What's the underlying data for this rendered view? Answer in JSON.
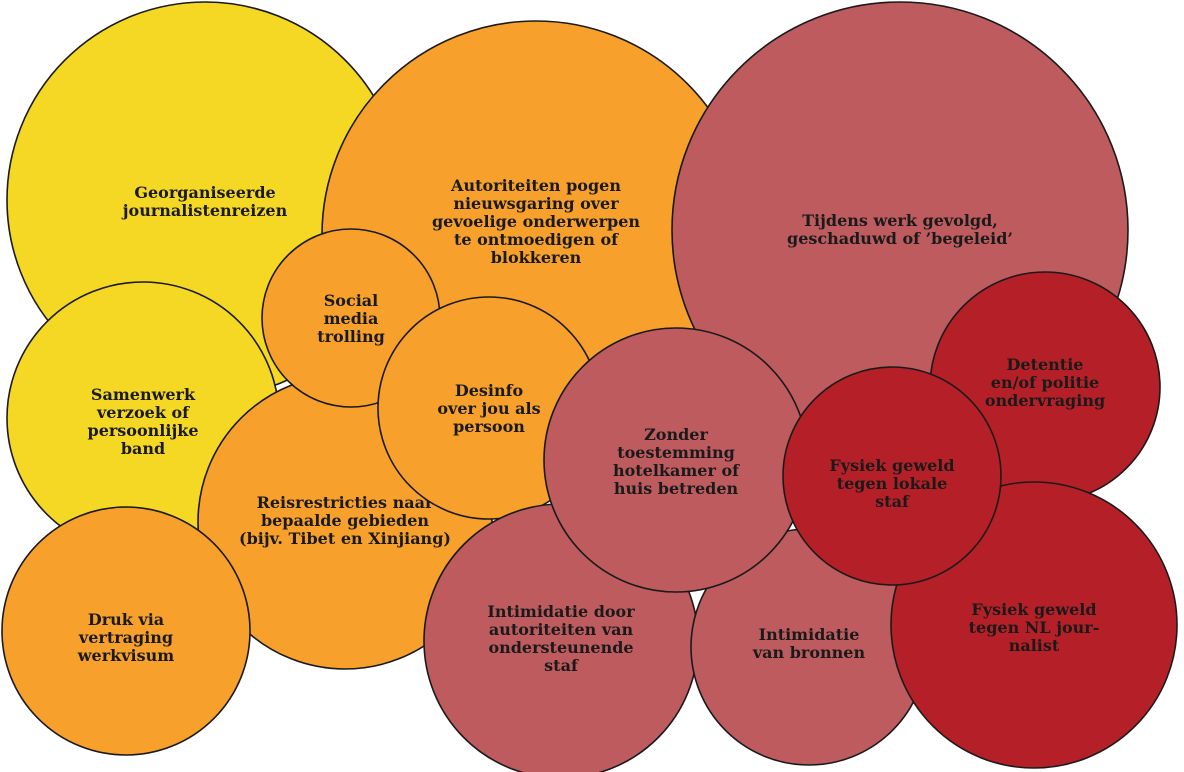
{
  "colors": {
    "yellow": "#f5d823",
    "orange": "#f7a02b",
    "rose": "#bd5b5f",
    "red": "#b52028",
    "outline": "#1a1a1a",
    "text": "#1a1a1a"
  },
  "bubbles": [
    {
      "id": "georganiseerde-journalistenreizen",
      "color": "yellow",
      "lines": [
        "Georganiseerde",
        "journalistenreizen"
      ]
    },
    {
      "id": "autoriteiten-pogen",
      "color": "orange",
      "lines": [
        "Autoriteiten pogen",
        "nieuwsgaring over",
        "gevoelige onderwerpen",
        "te ontmoedigen of",
        "blokkeren"
      ]
    },
    {
      "id": "tijdens-werk-gevolgd",
      "color": "rose",
      "lines": [
        "Tijdens werk gevolgd,",
        "geschaduwd of ’begeleid’"
      ]
    },
    {
      "id": "samenwerk-verzoek",
      "color": "yellow",
      "lines": [
        "Samenwerk",
        "verzoek of",
        "persoonlijke",
        "band"
      ]
    },
    {
      "id": "reisrestricties",
      "color": "orange",
      "lines": [
        "Reisrestricties naar",
        "bepaalde gebieden",
        "(bijv. Tibet en Xinjiang)"
      ]
    },
    {
      "id": "social-media-trolling",
      "color": "orange",
      "lines": [
        "Social",
        "media",
        "trolling"
      ]
    },
    {
      "id": "desinfo",
      "color": "orange",
      "lines": [
        "Desinfo",
        "over jou als",
        "persoon"
      ]
    },
    {
      "id": "druk-via-vertraging",
      "color": "orange",
      "lines": [
        "Druk via",
        "vertraging",
        "werkvisum"
      ]
    },
    {
      "id": "intimidatie-staf",
      "color": "rose",
      "lines": [
        "Intimidatie door",
        "autoriteiten van",
        "ondersteunende",
        "staf"
      ]
    },
    {
      "id": "intimidatie-bronnen",
      "color": "rose",
      "lines": [
        "Intimidatie",
        "van bronnen"
      ]
    },
    {
      "id": "zonder-toestemming",
      "color": "rose",
      "lines": [
        "Zonder",
        "toestemming",
        "hotelkamer of",
        "huis betreden"
      ]
    },
    {
      "id": "detentie",
      "color": "red",
      "lines": [
        "Detentie",
        "en/of politie",
        "ondervraging"
      ]
    },
    {
      "id": "fysiek-geweld-nl",
      "color": "red",
      "lines": [
        "Fysiek geweld",
        "tegen NL jour-",
        "nalist"
      ]
    },
    {
      "id": "fysiek-geweld-lokaal",
      "color": "red",
      "lines": [
        "Fysiek geweld",
        "tegen lokale",
        "staf"
      ]
    }
  ]
}
